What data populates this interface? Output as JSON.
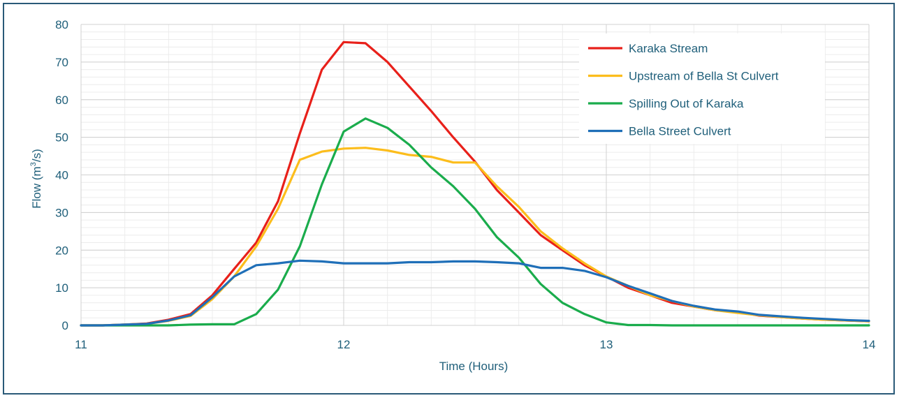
{
  "chart_data": {
    "type": "line",
    "xlabel": "Time  (Hours)",
    "ylabel_main": "Flow  (m",
    "ylabel_sup": "3",
    "ylabel_end": "/s)",
    "xlim": [
      11,
      14
    ],
    "ylim": [
      0,
      80
    ],
    "xticks": [
      11,
      12,
      13,
      14
    ],
    "yticks": [
      0,
      10,
      20,
      30,
      40,
      50,
      60,
      70,
      80
    ],
    "grid": true,
    "legend_position": "top-right",
    "series": [
      {
        "name": "Karaka Stream",
        "color": "#e8201a",
        "x": [
          11,
          11.083,
          11.167,
          11.25,
          11.333,
          11.417,
          11.5,
          11.583,
          11.667,
          11.75,
          11.833,
          11.917,
          12,
          12.083,
          12.167,
          12.25,
          12.333,
          12.417,
          12.5,
          12.583,
          12.667,
          12.75,
          12.833,
          12.917,
          13,
          13.083,
          13.167,
          13.25,
          13.333,
          13.417,
          13.5,
          13.583,
          13.667,
          13.75,
          13.833,
          13.917,
          14
        ],
        "y": [
          0,
          0,
          0.2,
          0.5,
          1.5,
          3,
          8,
          15,
          22,
          33,
          51,
          68,
          75.3,
          75,
          70,
          63.5,
          57,
          50,
          43.5,
          36,
          30,
          24,
          20,
          16,
          13,
          10,
          8,
          6,
          5,
          4,
          3.5,
          2.6,
          2.2,
          1.8,
          1.5,
          1.3,
          1.1
        ]
      },
      {
        "name": "Upstream of Bella St Culvert",
        "color": "#fcbd1c",
        "x": [
          11,
          11.083,
          11.167,
          11.25,
          11.333,
          11.417,
          11.5,
          11.583,
          11.667,
          11.75,
          11.833,
          11.917,
          12,
          12.083,
          12.167,
          12.25,
          12.333,
          12.417,
          12.5,
          12.583,
          12.667,
          12.75,
          12.833,
          12.917,
          13,
          13.083,
          13.167,
          13.25,
          13.333,
          13.417,
          13.5,
          13.583,
          13.667,
          13.75,
          13.833,
          13.917,
          14
        ],
        "y": [
          0,
          0,
          0.2,
          0.4,
          1.2,
          2.5,
          7,
          13,
          21,
          31,
          44,
          46.2,
          47,
          47.2,
          46.5,
          45.3,
          44.8,
          43.3,
          43.3,
          37,
          31.5,
          25,
          20.5,
          16.5,
          13,
          10.5,
          8,
          6.5,
          5,
          4,
          3.3,
          2.7,
          2.2,
          1.8,
          1.5,
          1.3,
          1.1
        ]
      },
      {
        "name": "Spilling Out of Karaka",
        "color": "#1aac4c",
        "x": [
          11,
          11.083,
          11.167,
          11.25,
          11.333,
          11.417,
          11.5,
          11.583,
          11.667,
          11.75,
          11.833,
          11.917,
          12,
          12.083,
          12.167,
          12.25,
          12.333,
          12.417,
          12.5,
          12.583,
          12.667,
          12.75,
          12.833,
          12.917,
          13,
          13.083,
          13.167,
          13.25,
          13.333,
          13.417,
          13.5,
          13.583,
          13.667,
          13.75,
          13.833,
          13.917,
          14
        ],
        "y": [
          0,
          0,
          0,
          0,
          0,
          0.2,
          0.3,
          0.3,
          3,
          9.5,
          21,
          37.5,
          51.5,
          55,
          52.5,
          48,
          42,
          37,
          31,
          23.5,
          18,
          11,
          6,
          3,
          0.8,
          0.1,
          0.1,
          0,
          0,
          0,
          0,
          0,
          0,
          0,
          0,
          0,
          0
        ]
      },
      {
        "name": "Bella Street Culvert",
        "color": "#1f6fb8",
        "x": [
          11,
          11.083,
          11.167,
          11.25,
          11.333,
          11.417,
          11.5,
          11.583,
          11.667,
          11.75,
          11.833,
          11.917,
          12,
          12.083,
          12.167,
          12.25,
          12.333,
          12.417,
          12.5,
          12.583,
          12.667,
          12.75,
          12.833,
          12.917,
          13,
          13.083,
          13.167,
          13.25,
          13.333,
          13.417,
          13.5,
          13.583,
          13.667,
          13.75,
          13.833,
          13.917,
          14
        ],
        "y": [
          0,
          0,
          0.2,
          0.4,
          1.3,
          2.7,
          7.5,
          13,
          16,
          16.5,
          17.2,
          17,
          16.5,
          16.5,
          16.5,
          16.8,
          16.8,
          17,
          17,
          16.8,
          16.5,
          15.3,
          15.3,
          14.5,
          12.8,
          10.5,
          8.5,
          6.5,
          5.2,
          4.2,
          3.7,
          2.8,
          2.4,
          2,
          1.7,
          1.4,
          1.2
        ]
      }
    ]
  }
}
